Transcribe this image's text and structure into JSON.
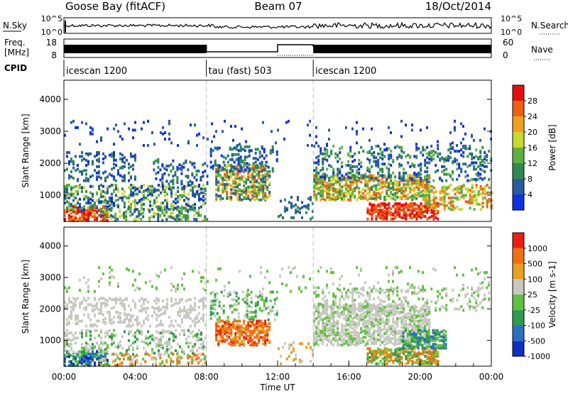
{
  "header": {
    "station": "Goose Bay (fitACF)",
    "beam": "Beam 07",
    "date": "18/Oct/2014"
  },
  "noise_panel": {
    "left_label": "N.Sky",
    "right_label": "N.Search",
    "left_ticks": [
      "10^5",
      "10^0"
    ],
    "right_ticks": [
      "10^5",
      "10^0"
    ]
  },
  "freq_panel": {
    "left_label_1": "Freq.",
    "left_label_2": "[MHz]",
    "right_label": "Nave",
    "left_ticks": [
      "18",
      "8"
    ],
    "right_ticks": [
      "60",
      "0"
    ]
  },
  "cpid": {
    "label": "CPID",
    "modes": [
      {
        "name": "icescan 1200",
        "start_h": 0,
        "end_h": 8
      },
      {
        "name": "tau (fast) 503",
        "start_h": 8,
        "end_h": 14
      },
      {
        "name": "icescan 1200",
        "start_h": 14,
        "end_h": 24
      }
    ]
  },
  "time_axis": {
    "label": "Time UT",
    "ticks": [
      "00:00",
      "04:00",
      "08:00",
      "12:00",
      "16:00",
      "20:00",
      "00:00"
    ]
  },
  "chart_data": [
    {
      "type": "heatmap",
      "name": "power",
      "ylabel": "Slant Range [km]",
      "ylim": [
        180,
        4600
      ],
      "yticks": [
        1000,
        2000,
        3000,
        4000
      ],
      "xlim": [
        0,
        24
      ],
      "colorbar_label": "Power [dB]",
      "colorbar_ticks": [
        "4",
        "8",
        "12",
        "16",
        "20",
        "24",
        "28"
      ],
      "colorbar_colors": [
        "#1030e0",
        "#2a5aa0",
        "#2e8a50",
        "#5fb040",
        "#c8d830",
        "#f0a020",
        "#ee6010",
        "#e01010"
      ]
    },
    {
      "type": "heatmap",
      "name": "velocity",
      "ylabel": "Slant Range [km]",
      "ylim": [
        180,
        4600
      ],
      "yticks": [
        1000,
        2000,
        3000,
        4000
      ],
      "xlim": [
        0,
        24
      ],
      "colorbar_label": "Velocity [m s-1]",
      "colorbar_ticks": [
        "1000",
        "500",
        "100",
        "25",
        "-25",
        "-100",
        "-500",
        "-1000"
      ],
      "colorbar_colors": [
        "#1030c0",
        "#2a70c0",
        "#2f9a50",
        "#60c040",
        "#c8c8c0",
        "#e8a020",
        "#f07010",
        "#e82010"
      ]
    }
  ]
}
